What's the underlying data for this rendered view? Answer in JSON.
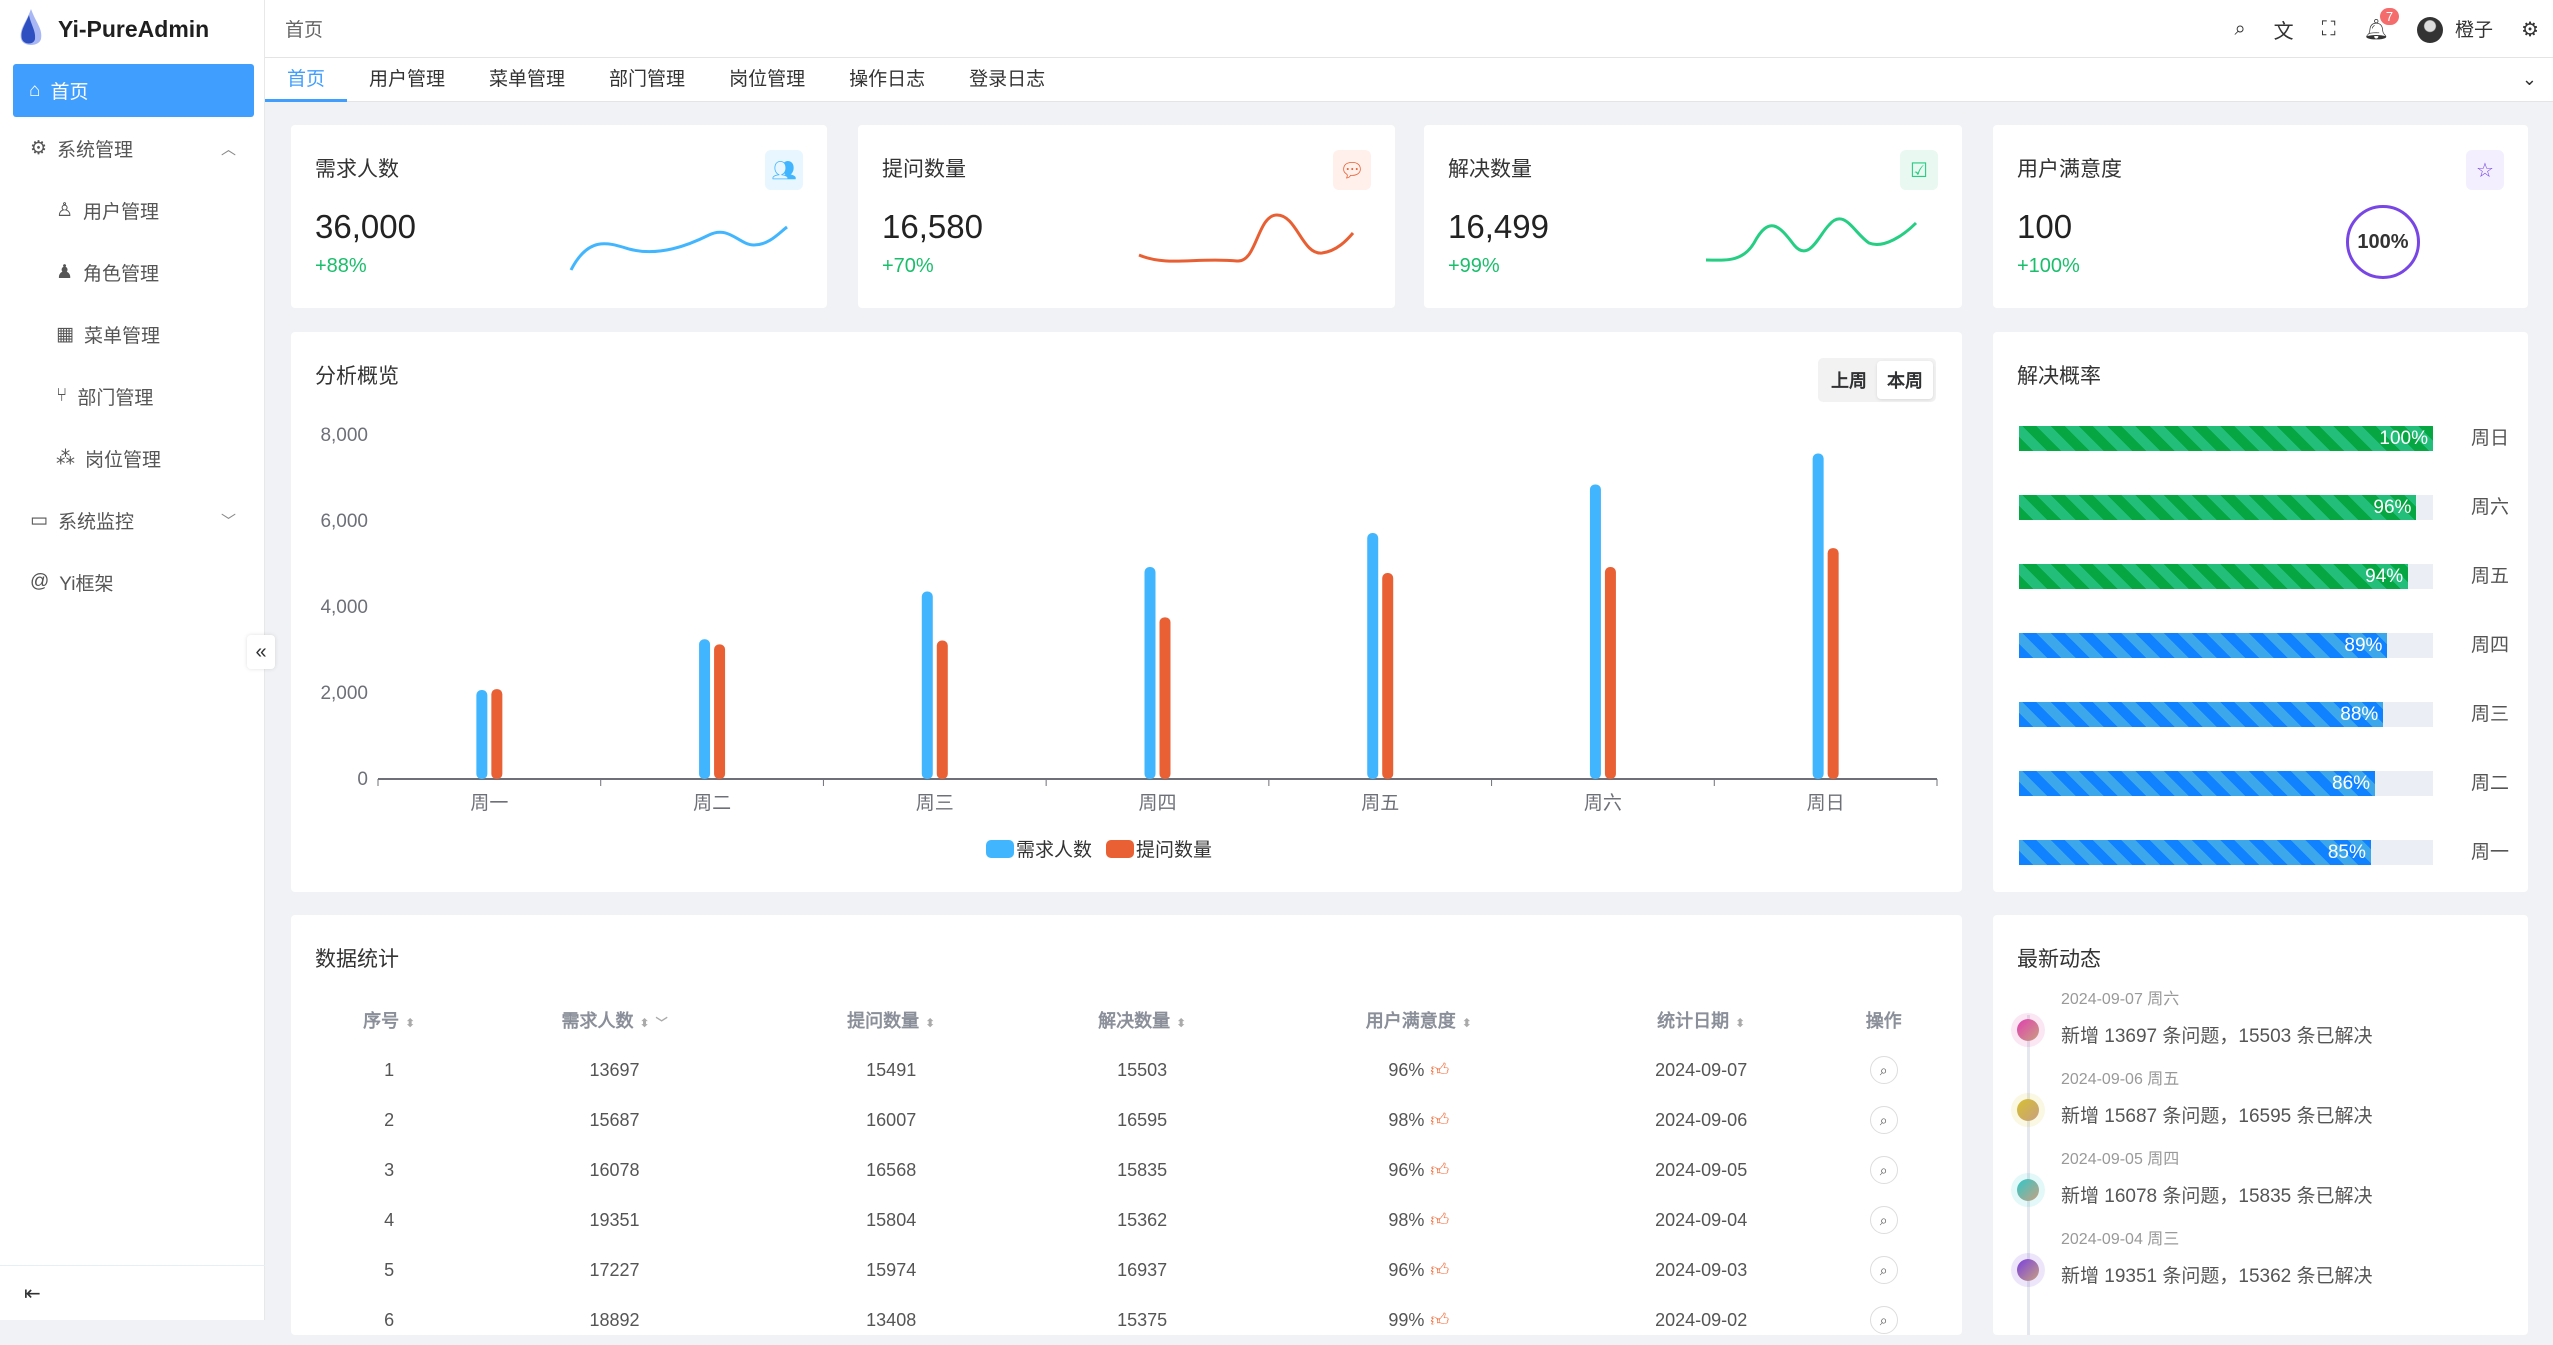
{
  "app": {
    "title": "Yi-PureAdmin"
  },
  "sidebar": {
    "items": [
      {
        "label": "首页",
        "icon": "home-icon",
        "active": true
      },
      {
        "label": "系统管理",
        "icon": "gear-icon",
        "expanded": true
      },
      {
        "label": "用户管理",
        "icon": "user-icon",
        "sub": true
      },
      {
        "label": "角色管理",
        "icon": "role-icon",
        "sub": true
      },
      {
        "label": "菜单管理",
        "icon": "grid-icon",
        "sub": true
      },
      {
        "label": "部门管理",
        "icon": "branch-icon",
        "sub": true
      },
      {
        "label": "岗位管理",
        "icon": "nodes-icon",
        "sub": true
      },
      {
        "label": "系统监控",
        "icon": "monitor-icon",
        "expanded": false
      },
      {
        "label": "Yi框架",
        "icon": "at-icon"
      }
    ]
  },
  "header": {
    "breadcrumb": "首页",
    "notification_count": "7",
    "username": "橙子"
  },
  "tabs": [
    "首页",
    "用户管理",
    "菜单管理",
    "部门管理",
    "岗位管理",
    "操作日志",
    "登录日志"
  ],
  "stats": [
    {
      "title": "需求人数",
      "value": "36,000",
      "change": "+88%",
      "color": "#41b6ff",
      "icon": "users-icon"
    },
    {
      "title": "提问数量",
      "value": "16,580",
      "change": "+70%",
      "color": "#e85f33",
      "icon": "chat-icon"
    },
    {
      "title": "解决数量",
      "value": "16,499",
      "change": "+99%",
      "color": "#26ce83",
      "icon": "check-message-icon"
    },
    {
      "title": "用户满意度",
      "value": "100",
      "change": "+100%",
      "color": "#7846e5",
      "icon": "star-icon",
      "ring_label": "100%"
    }
  ],
  "overview": {
    "title": "分析概览",
    "toggle": [
      "上周",
      "本周"
    ],
    "selected": "本周"
  },
  "chart_data": {
    "type": "bar",
    "categories": [
      "周一",
      "周二",
      "周三",
      "周四",
      "周五",
      "周六",
      "周日"
    ],
    "series": [
      {
        "name": "需求人数",
        "color": "#41b6ff",
        "values": [
          2070,
          3250,
          4360,
          4930,
          5720,
          6850,
          7570
        ]
      },
      {
        "name": "提问数量",
        "color": "#e86033",
        "values": [
          2090,
          3130,
          3220,
          3760,
          4790,
          4930,
          5370
        ]
      }
    ],
    "yticks": [
      "0",
      "2,000",
      "4,000",
      "6,000",
      "8,000"
    ],
    "ylim": [
      0,
      8000
    ],
    "legend": "bottom"
  },
  "solve_rate": {
    "title": "解决概率",
    "items": [
      {
        "day": "周日",
        "pct": 100,
        "label": "100%",
        "color": "#26ce83"
      },
      {
        "day": "周六",
        "pct": 96,
        "label": "96%",
        "color": "#26ce83"
      },
      {
        "day": "周五",
        "pct": 94,
        "label": "94%",
        "color": "#26ce83"
      },
      {
        "day": "周四",
        "pct": 89,
        "label": "89%",
        "color": "#41b6ff"
      },
      {
        "day": "周三",
        "pct": 88,
        "label": "88%",
        "color": "#41b6ff"
      },
      {
        "day": "周二",
        "pct": 86,
        "label": "86%",
        "color": "#41b6ff"
      },
      {
        "day": "周一",
        "pct": 85,
        "label": "85%",
        "color": "#41b6ff"
      }
    ]
  },
  "table": {
    "title": "数据统计",
    "columns": [
      "序号",
      "需求人数",
      "提问数量",
      "解决数量",
      "用户满意度",
      "统计日期",
      "操作"
    ],
    "rows": [
      [
        "1",
        "13697",
        "15491",
        "15503",
        "96%",
        "2024-09-07"
      ],
      [
        "2",
        "15687",
        "16007",
        "16595",
        "98%",
        "2024-09-06"
      ],
      [
        "3",
        "16078",
        "16568",
        "15835",
        "96%",
        "2024-09-05"
      ],
      [
        "4",
        "19351",
        "15804",
        "15362",
        "98%",
        "2024-09-04"
      ],
      [
        "5",
        "17227",
        "15974",
        "16937",
        "96%",
        "2024-09-03"
      ],
      [
        "6",
        "18892",
        "13408",
        "15375",
        "99%",
        "2024-09-02"
      ]
    ]
  },
  "activity": {
    "title": "最新动态",
    "items": [
      {
        "date": "2024-09-07 周六",
        "text": "新增 13697 条问题，15503 条已解决",
        "color": "#e040b0"
      },
      {
        "date": "2024-09-06 周五",
        "text": "新增 15687 条问题，16595 条已解决",
        "color": "#d6c030"
      },
      {
        "date": "2024-09-05 周四",
        "text": "新增 16078 条问题，15835 条已解决",
        "color": "#30c8c8"
      },
      {
        "date": "2024-09-04 周三",
        "text": "新增 19351 条问题，15362 条已解决",
        "color": "#7a40e0"
      }
    ]
  }
}
